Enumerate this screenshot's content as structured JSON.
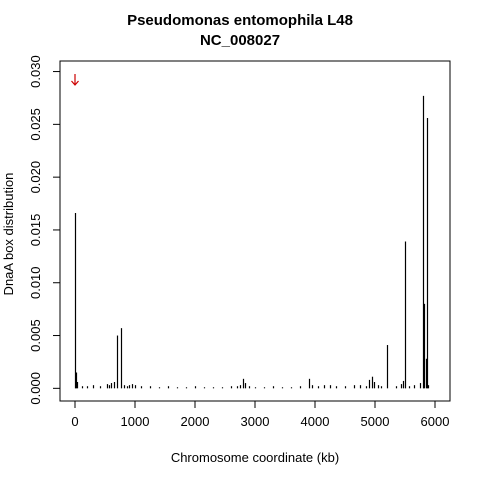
{
  "chart_data": {
    "type": "bar",
    "title": "Pseudomonas entomophila L48",
    "subtitle": "NC_008027",
    "xlabel": "Chromosome coordinate (kb)",
    "ylabel": "DnaA box distribution",
    "xlim": [
      -250,
      6250
    ],
    "ylim": [
      -0.0012,
      0.031
    ],
    "x_ticks": [
      0,
      1000,
      2000,
      3000,
      4000,
      5000,
      6000
    ],
    "x_tick_labels": [
      "0",
      "1000",
      "2000",
      "3000",
      "4000",
      "5000",
      "6000"
    ],
    "y_ticks": [
      0.0,
      0.005,
      0.01,
      0.015,
      0.02,
      0.025,
      0.03
    ],
    "y_tick_labels": [
      "0.000",
      "0.005",
      "0.010",
      "0.015",
      "0.020",
      "0.025",
      "0.030"
    ],
    "grid": false,
    "arrow_marker": {
      "x": 0,
      "color": "#cc0000"
    },
    "bar_color": "#000000",
    "x": [
      0,
      10,
      30,
      120,
      200,
      300,
      420,
      530,
      560,
      600,
      650,
      700,
      760,
      820,
      870,
      900,
      950,
      1000,
      1100,
      1250,
      1400,
      1550,
      1700,
      1850,
      2000,
      2150,
      2300,
      2450,
      2600,
      2700,
      2750,
      2800,
      2830,
      2900,
      3000,
      3150,
      3300,
      3450,
      3600,
      3750,
      3900,
      3950,
      4050,
      4150,
      4250,
      4350,
      4500,
      4650,
      4750,
      4850,
      4900,
      4950,
      4980,
      5050,
      5100,
      5200,
      5350,
      5430,
      5470,
      5500,
      5560,
      5650,
      5750,
      5800,
      5820,
      5850,
      5870,
      5890
    ],
    "values": [
      0.0166,
      0.0015,
      0.0006,
      0.0002,
      0.0002,
      0.0003,
      0.0002,
      0.0004,
      0.0003,
      0.0005,
      0.0006,
      0.005,
      0.0057,
      0.0003,
      0.0002,
      0.0003,
      0.0004,
      0.0003,
      0.0002,
      0.0002,
      0.0001,
      0.0002,
      0.0001,
      0.0001,
      0.0002,
      0.0001,
      0.0001,
      0.0001,
      0.0002,
      0.0002,
      0.0003,
      0.0009,
      0.0005,
      0.0002,
      0.0001,
      0.0001,
      0.0002,
      0.0001,
      0.0001,
      0.0002,
      0.0009,
      0.0003,
      0.0002,
      0.0003,
      0.0003,
      0.0002,
      0.0002,
      0.0003,
      0.0003,
      0.0002,
      0.0008,
      0.0011,
      0.0006,
      0.0003,
      0.0002,
      0.0041,
      0.0002,
      0.0004,
      0.0007,
      0.0139,
      0.0002,
      0.0003,
      0.0005,
      0.0277,
      0.008,
      0.0028,
      0.0256,
      0.0003
    ]
  }
}
